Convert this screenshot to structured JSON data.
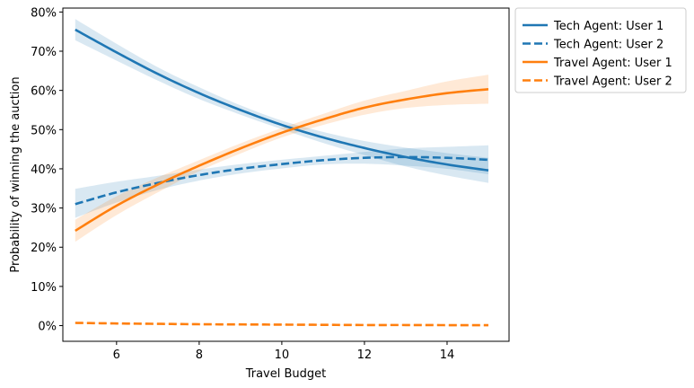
{
  "chart_data": {
    "type": "line",
    "title": "",
    "xlabel": "Travel Budget",
    "ylabel": "Probability of winning the auction",
    "xlim": [
      4.7,
      15.5
    ],
    "ylim": [
      -4,
      81
    ],
    "xticks": [
      6,
      8,
      10,
      12,
      14
    ],
    "xtick_labels": [
      "6",
      "8",
      "10",
      "12",
      "14"
    ],
    "yticks": [
      0,
      10,
      20,
      30,
      40,
      50,
      60,
      70,
      80
    ],
    "ytick_labels": [
      "0%",
      "10%",
      "20%",
      "30%",
      "40%",
      "50%",
      "60%",
      "70%",
      "80%"
    ],
    "grid": false,
    "legend_position": "outside-top-right",
    "x": [
      5,
      6,
      7,
      8,
      9,
      10,
      11,
      12,
      13,
      14,
      15
    ],
    "series": [
      {
        "name": "Tech Agent: User 1",
        "color": "#1f77b4",
        "dash": "solid",
        "values": [
          75.5,
          69.7,
          64.2,
          59.3,
          55.0,
          51.2,
          48.0,
          45.3,
          43.0,
          41.1,
          39.6
        ],
        "ci_low": [
          72.8,
          67.6,
          62.5,
          57.8,
          53.8,
          50.1,
          46.6,
          43.5,
          40.6,
          38.3,
          36.4
        ],
        "ci_high": [
          78.2,
          71.9,
          65.9,
          60.8,
          56.2,
          52.3,
          49.4,
          47.1,
          45.4,
          44.0,
          42.8
        ]
      },
      {
        "name": "Tech Agent: User 2",
        "color": "#1f77b4",
        "dash": "dashed",
        "values": [
          31.0,
          34.0,
          36.4,
          38.4,
          40.0,
          41.2,
          42.2,
          42.8,
          43.0,
          42.8,
          42.3
        ],
        "ci_low": [
          27.5,
          31.4,
          34.6,
          37.0,
          38.8,
          40.1,
          41.1,
          41.3,
          40.8,
          40.0,
          38.6
        ],
        "ci_high": [
          34.9,
          36.7,
          38.2,
          39.8,
          41.2,
          42.3,
          43.3,
          44.3,
          45.2,
          45.6,
          46.0
        ]
      },
      {
        "name": "Travel Agent: User 1",
        "color": "#ff7f0e",
        "dash": "solid",
        "values": [
          24.2,
          30.6,
          36.0,
          40.8,
          45.2,
          49.2,
          52.6,
          55.6,
          57.7,
          59.3,
          60.3
        ],
        "ci_low": [
          21.4,
          28.2,
          34.0,
          39.4,
          43.9,
          48.0,
          51.2,
          53.8,
          55.5,
          56.3,
          56.6
        ],
        "ci_high": [
          27.0,
          33.0,
          37.8,
          42.2,
          46.5,
          50.4,
          54.0,
          57.4,
          59.9,
          62.3,
          64.0
        ]
      },
      {
        "name": "Travel Agent: User 2",
        "color": "#ff7f0e",
        "dash": "dashed",
        "values": [
          0.7,
          0.55,
          0.45,
          0.35,
          0.3,
          0.25,
          0.2,
          0.15,
          0.15,
          0.12,
          0.1
        ],
        "ci_low": [
          0.6,
          0.5,
          0.4,
          0.3,
          0.25,
          0.2,
          0.15,
          0.12,
          0.1,
          0.08,
          0.06
        ],
        "ci_high": [
          0.8,
          0.6,
          0.5,
          0.4,
          0.35,
          0.3,
          0.25,
          0.2,
          0.2,
          0.16,
          0.14
        ]
      }
    ]
  }
}
